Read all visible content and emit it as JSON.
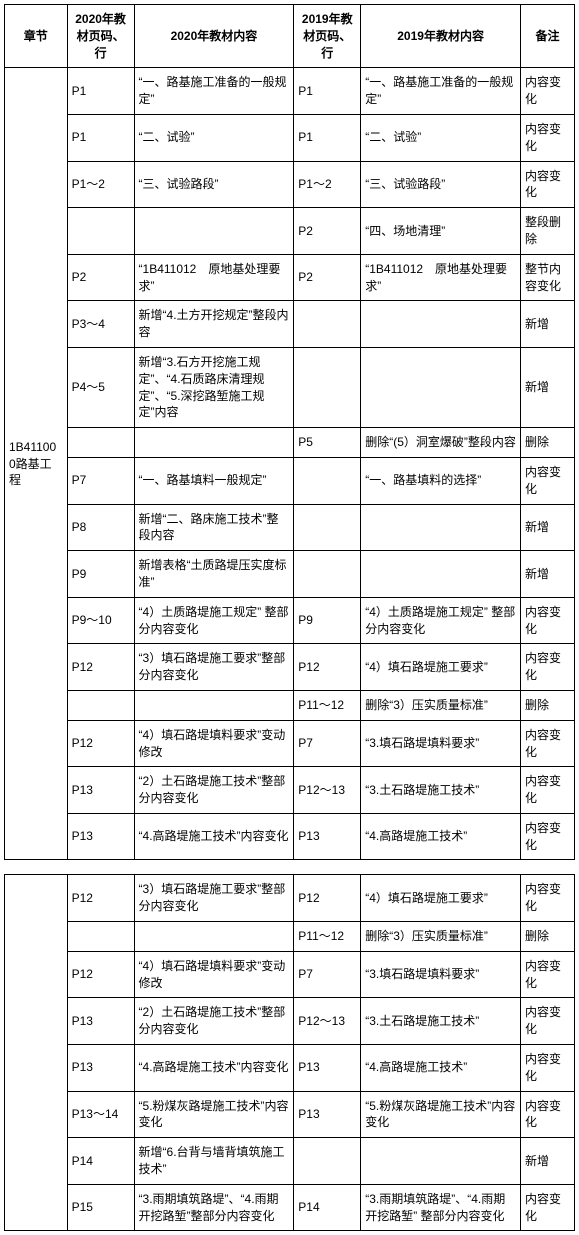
{
  "headers": {
    "chapter": "章节",
    "page2020": "2020年教材页码、行",
    "content2020": "2020年教材内容",
    "page2019": "2019年教材页码、行",
    "content2019": "2019年教材内容",
    "remark": "备注"
  },
  "chapter_label": "1B411000路基工程",
  "rows_a": [
    {
      "p20": "P1",
      "c20": "“一、路基施工准备的一般规定”",
      "p19": "P1",
      "c19": "“一、路基施工准备的一般规定”",
      "r": "内容变化"
    },
    {
      "p20": "P1",
      "c20": "“二、试验”",
      "p19": "P1",
      "c19": "“二、试验”",
      "r": "内容变化"
    },
    {
      "p20": "P1～2",
      "c20": "“三、试验路段”",
      "p19": "P1～2",
      "c19": "“三、试验路段”",
      "r": "内容变化"
    },
    {
      "p20": "",
      "c20": "",
      "p19": "P2",
      "c19": "“四、场地清理”",
      "r": "整段删除"
    },
    {
      "p20": "P2",
      "c20": "“1B411012　原地基处理要求”",
      "p19": "P2",
      "c19": "“1B411012　原地基处理要求”",
      "r": "整节内容变化"
    },
    {
      "p20": "P3～4",
      "c20": "新增“4.土方开挖规定”整段内容",
      "p19": "",
      "c19": "",
      "r": "新增"
    },
    {
      "p20": "P4～5",
      "c20": "新增“3.石方开挖施工规定”、“4.石质路床清理规定”、“5.深挖路堑施工规定”内容",
      "p19": "",
      "c19": "",
      "r": "新增"
    },
    {
      "p20": "",
      "c20": "",
      "p19": "P5",
      "c19": "删除“(5）洞室爆破”整段内容",
      "r": "删除"
    },
    {
      "p20": "P7",
      "c20": "“一、路基填料一般规定”",
      "p19": "",
      "c19": "“一、路基填料的选择”",
      "r": "内容变化"
    },
    {
      "p20": "P8",
      "c20": "新增“二、路床施工技术”整段内容",
      "p19": "",
      "c19": "",
      "r": "新增"
    },
    {
      "p20": "P9",
      "c20": "新增表格“土质路堤压实度标准”",
      "p19": "",
      "c19": "",
      "r": "新增"
    },
    {
      "p20": "P9～10",
      "c20": "“4）土质路堤施工规定” 整部分内容变化",
      "p19": "P9",
      "c19": "“4）土质路堤施工规定” 整部分内容变化",
      "r": "内容变化"
    },
    {
      "p20": "P12",
      "c20": "“3）填石路堤施工要求”整部分内容变化",
      "p19": "P12",
      "c19": "“4）填石路堤施工要求”",
      "r": "内容变化"
    },
    {
      "p20": "",
      "c20": "",
      "p19": "P11～12",
      "c19": "删除“3）压实质量标准”",
      "r": "删除"
    },
    {
      "p20": "P12",
      "c20": "“4）填石路堤填料要求”变动修改",
      "p19": "P7",
      "c19": "“3.填石路堤填料要求”",
      "r": "内容变化"
    },
    {
      "p20": "P13",
      "c20": "“2）土石路堤施工技术”整部分内容变化",
      "p19": "P12～13",
      "c19": "“3.土石路堤施工技术”",
      "r": "内容变化"
    },
    {
      "p20": "P13",
      "c20": "“4.高路堤施工技术”内容变化",
      "p19": "P13",
      "c19": "“4.高路堤施工技术”",
      "r": "内容变化"
    }
  ],
  "rows_b": [
    {
      "p20": "P12",
      "c20": "“3）填石路堤施工要求”整部分内容变化",
      "p19": "P12",
      "c19": "“4）填石路堤施工要求”",
      "r": "内容变化"
    },
    {
      "p20": "",
      "c20": "",
      "p19": "P11～12",
      "c19": "删除“3）压实质量标准”",
      "r": "删除"
    },
    {
      "p20": "P12",
      "c20": "“4）填石路堤填料要求”变动修改",
      "p19": "P7",
      "c19": "“3.填石路堤填料要求”",
      "r": "内容变化"
    },
    {
      "p20": "P13",
      "c20": "“2）土石路堤施工技术”整部分内容变化",
      "p19": "P12～13",
      "c19": "“3.土石路堤施工技术”",
      "r": "内容变化"
    },
    {
      "p20": "P13",
      "c20": "“4.高路堤施工技术”内容变化",
      "p19": "P13",
      "c19": "“4.高路堤施工技术”",
      "r": "内容变化"
    },
    {
      "p20": "P13～14",
      "c20": "“5.粉煤灰路堤施工技术”内容变化",
      "p19": "P13",
      "c19": "“5.粉煤灰路堤施工技术”内容变化",
      "r": "内容变化"
    },
    {
      "p20": "P14",
      "c20": "新增“6.台背与墙背填筑施工技术”",
      "p19": "",
      "c19": "",
      "r": "新增"
    },
    {
      "p20": "P15",
      "c20": "“3.雨期填筑路堤”、“4.雨期开挖路堑”整部分内容变化",
      "p19": "P14",
      "c19": "“3.雨期填筑路堤”、“4.雨期开挖路堑” 整部分内容变化",
      "r": "内容变化"
    }
  ]
}
